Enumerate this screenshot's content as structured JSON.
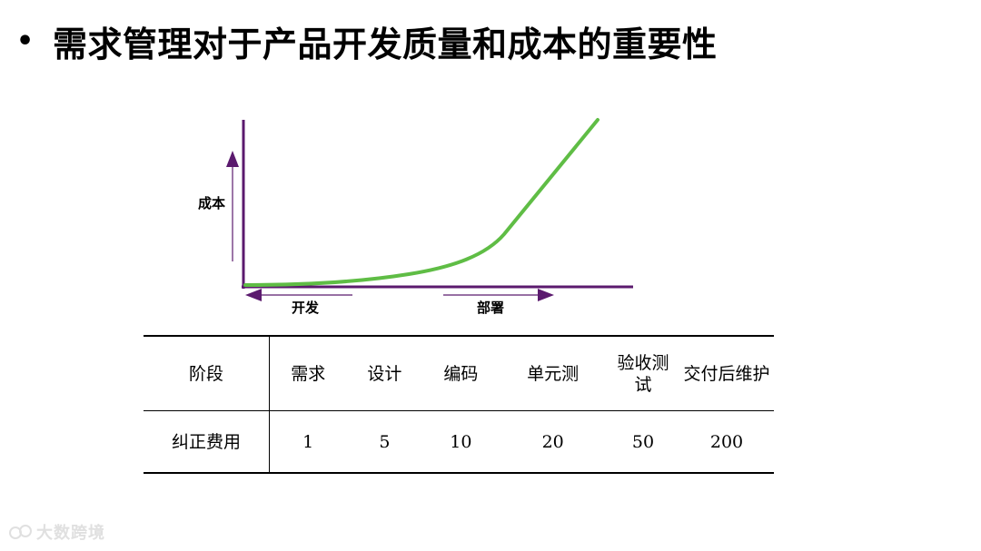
{
  "title": "需求管理对于产品开发质量和成本的重要性",
  "chart": {
    "y_label": "成本",
    "dev_label": "开发",
    "deploy_label": "部署",
    "curve_color": "#5fbd45",
    "axis_color": "#5b1a6e"
  },
  "table": {
    "header_label": "阶段",
    "value_label": "纠正费用",
    "stages": [
      "需求",
      "设计",
      "编码",
      "单元测",
      "验收测试",
      "交付后维护"
    ],
    "costs": [
      "1",
      "5",
      "10",
      "20",
      "50",
      "200"
    ]
  },
  "watermark": "大数跨境"
}
